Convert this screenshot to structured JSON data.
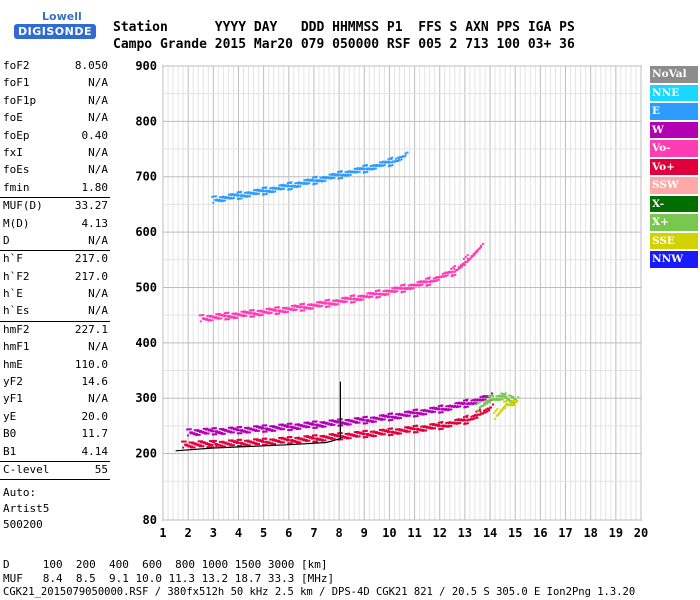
{
  "logo": {
    "line1": "Lowell",
    "line2": "DIGISONDE"
  },
  "header": {
    "row1": "Station      YYYY DAY   DDD HHMMSS P1  FFS S AXN PPS IGA PS",
    "row2": "Campo Grande 2015 Mar20 079 050000 RSF 005 2 713 100 03+ 36"
  },
  "params": [
    {
      "label": "foF2",
      "value": "8.050"
    },
    {
      "label": "foF1",
      "value": "N/A"
    },
    {
      "label": "foF1p",
      "value": "N/A"
    },
    {
      "label": "foE",
      "value": "N/A"
    },
    {
      "label": "foEp",
      "value": "0.40"
    },
    {
      "label": "fxI",
      "value": "N/A"
    },
    {
      "label": "foEs",
      "value": "N/A"
    },
    {
      "label": "fmin",
      "value": "1.80",
      "sep": true
    },
    {
      "label": "MUF(D)",
      "value": "33.27"
    },
    {
      "label": "M(D)",
      "value": "4.13"
    },
    {
      "label": "D",
      "value": "N/A",
      "sep": true
    },
    {
      "label": "h`F",
      "value": "217.0"
    },
    {
      "label": "h`F2",
      "value": "217.0"
    },
    {
      "label": "h`E",
      "value": "N/A"
    },
    {
      "label": "h`Es",
      "value": "N/A",
      "sep": true
    },
    {
      "label": "hmF2",
      "value": "227.1"
    },
    {
      "label": "hmF1",
      "value": "N/A"
    },
    {
      "label": "hmE",
      "value": "110.0"
    },
    {
      "label": "yF2",
      "value": "14.6"
    },
    {
      "label": "yF1",
      "value": "N/A"
    },
    {
      "label": "yE",
      "value": "20.0"
    },
    {
      "label": "B0",
      "value": "11.7"
    },
    {
      "label": "B1",
      "value": "4.14",
      "sep": true
    },
    {
      "label": "C-level",
      "value": "55",
      "sep": true
    }
  ],
  "autoscaling": {
    "line1": "Auto:",
    "line2": "Artist5",
    "line3": "500200"
  },
  "legend": [
    {
      "label": "NoVal",
      "color": "#8c8c8c"
    },
    {
      "label": "NNE",
      "color": "#1ad7ff"
    },
    {
      "label": "E",
      "color": "#2e9bff"
    },
    {
      "label": "W",
      "color": "#b400b4"
    },
    {
      "label": "Vo-",
      "color": "#ff3cb4"
    },
    {
      "label": "Vo+",
      "color": "#e0003c"
    },
    {
      "label": "SSW",
      "color": "#ffa8a8"
    },
    {
      "label": "X-",
      "color": "#006e00"
    },
    {
      "label": "X+",
      "color": "#78c850"
    },
    {
      "label": "SSE",
      "color": "#d2d200"
    },
    {
      "label": "NNW",
      "color": "#1a1aff"
    }
  ],
  "footer": {
    "d_row": "D     100  200  400  600  800 1000 1500 3000 [km]",
    "muf_row": "MUF   8.4  8.5  9.1 10.0 11.3 13.2 18.7 33.3 [MHz]",
    "info": "CGK21_2015079050000.RSF / 380fx512h 50 kHz 2.5 km / DPS-4D CGK21 821 / 20.5 S 305.0 E Ion2Png 1.3.20"
  },
  "chart_data": {
    "type": "scatter",
    "xlim": [
      1,
      20
    ],
    "ylim": [
      80,
      900
    ],
    "x_ticks": [
      "1",
      "2",
      "3",
      "4",
      "5",
      "6",
      "7",
      "8",
      "9",
      "10",
      "11",
      "12",
      "13",
      "14",
      "15",
      "16",
      "17",
      "18",
      "19",
      "20"
    ],
    "y_ticks": [
      "80",
      "200",
      "300",
      "400",
      "500",
      "600",
      "700",
      "800",
      "900"
    ],
    "y_tick_values": [
      80,
      200,
      300,
      400,
      500,
      600,
      700,
      800,
      900
    ],
    "grid": true,
    "series": [
      {
        "name": "Vo+",
        "color": "#e0003c",
        "points": [
          [
            1.8,
            218
          ],
          [
            3,
            219
          ],
          [
            4,
            221
          ],
          [
            5,
            223
          ],
          [
            6,
            226
          ],
          [
            7,
            229
          ],
          [
            8,
            233
          ],
          [
            9,
            237
          ],
          [
            10,
            241
          ],
          [
            11,
            246
          ],
          [
            12,
            252
          ],
          [
            13,
            262
          ],
          [
            13.5,
            272
          ],
          [
            14,
            285
          ]
        ]
      },
      {
        "name": "W",
        "color": "#b400b4",
        "points": [
          [
            2,
            240
          ],
          [
            3,
            242
          ],
          [
            4,
            244
          ],
          [
            5,
            247
          ],
          [
            6,
            250
          ],
          [
            7,
            254
          ],
          [
            8,
            258
          ],
          [
            9,
            262
          ],
          [
            10,
            268
          ],
          [
            11,
            275
          ],
          [
            12,
            282
          ],
          [
            13,
            292
          ],
          [
            14,
            305
          ]
        ]
      },
      {
        "name": "Vo-",
        "color": "#ff3cb4",
        "points": [
          [
            2.5,
            446
          ],
          [
            3.5,
            450
          ],
          [
            4.5,
            455
          ],
          [
            5.5,
            460
          ],
          [
            6.5,
            466
          ],
          [
            7.5,
            473
          ],
          [
            8.5,
            481
          ],
          [
            9.5,
            490
          ],
          [
            10.5,
            500
          ],
          [
            11.5,
            512
          ],
          [
            12.5,
            530
          ],
          [
            13,
            548
          ],
          [
            13.6,
            575
          ]
        ]
      },
      {
        "name": "E",
        "color": "#2e9bff",
        "points": [
          [
            3,
            660
          ],
          [
            4,
            668
          ],
          [
            5,
            676
          ],
          [
            6,
            685
          ],
          [
            7,
            695
          ],
          [
            8,
            705
          ],
          [
            9,
            716
          ],
          [
            10,
            728
          ],
          [
            10.6,
            740
          ]
        ]
      },
      {
        "name": "X+",
        "color": "#78c850",
        "points": [
          [
            13.5,
            285
          ],
          [
            14,
            300
          ],
          [
            14.5,
            305
          ],
          [
            15,
            298
          ]
        ]
      },
      {
        "name": "SSE",
        "color": "#d2d200",
        "points": [
          [
            14.2,
            270
          ],
          [
            14.6,
            290
          ],
          [
            15,
            295
          ]
        ]
      }
    ],
    "profile": {
      "name": "hmF2 profile",
      "color": "#000000",
      "points": [
        [
          1.5,
          205
        ],
        [
          3,
          210
        ],
        [
          4.5,
          213
        ],
        [
          6,
          216
        ],
        [
          7.5,
          220
        ],
        [
          8.05,
          227
        ],
        [
          8.05,
          330
        ]
      ]
    }
  }
}
